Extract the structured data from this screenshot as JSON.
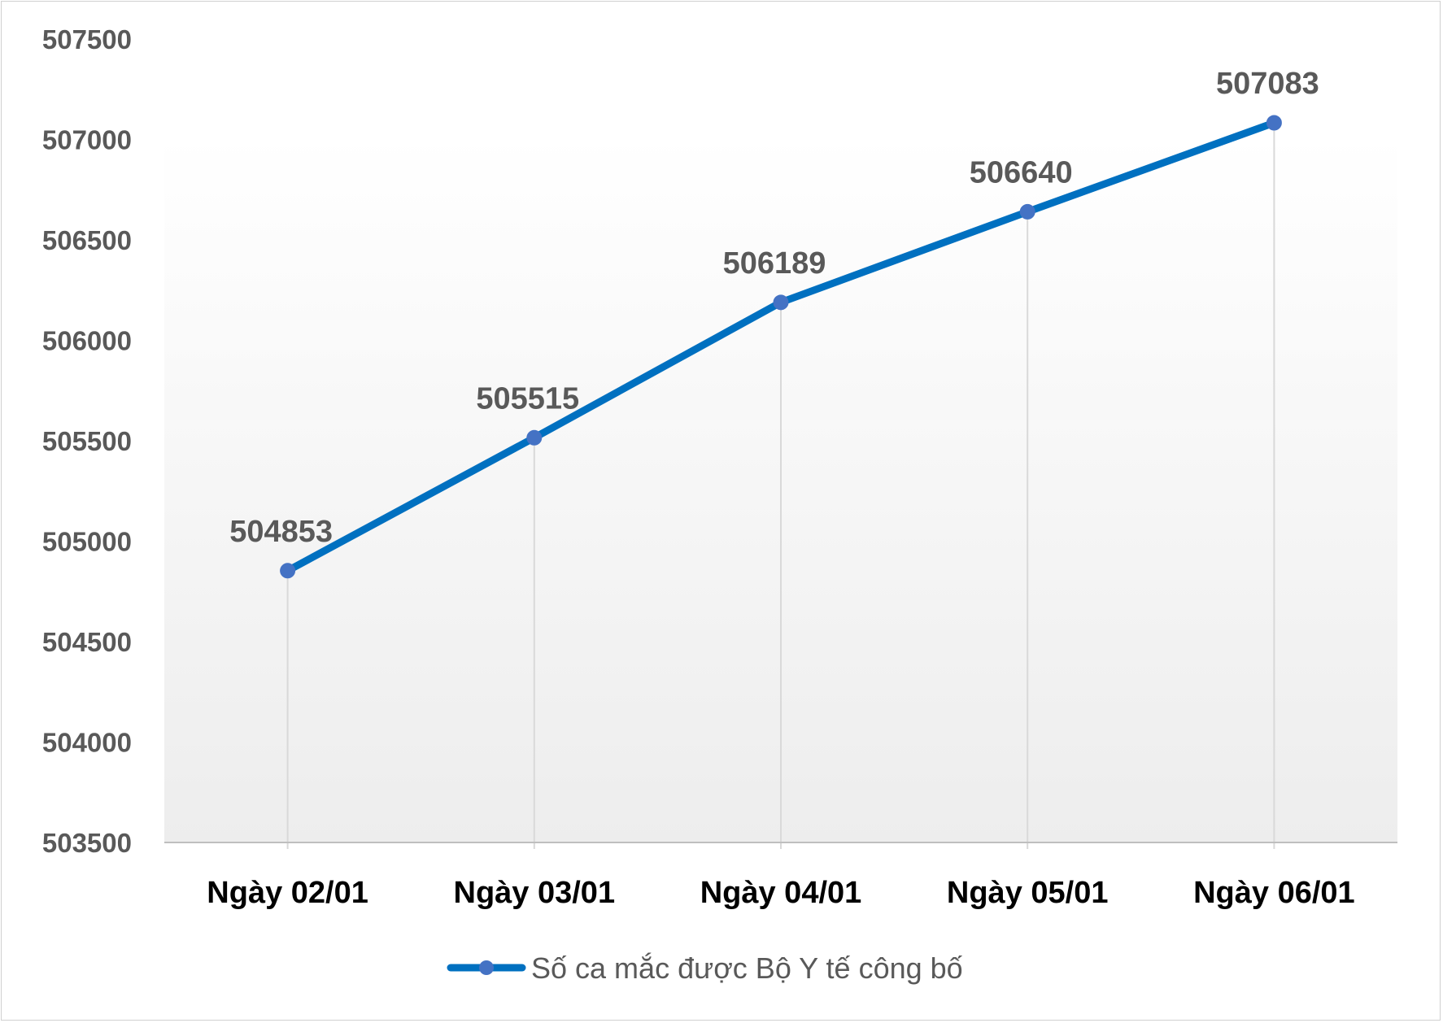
{
  "colors": {
    "series": "#0070C0",
    "marker": "#4472C4",
    "grid": "#d9d9d9",
    "axis": "#bfbfbf",
    "plot_bg_top": "#ffffff",
    "plot_bg_bottom": "#ededed"
  },
  "chart_data": {
    "type": "line",
    "categories": [
      "Ngày 02/01",
      "Ngày 03/01",
      "Ngày 04/01",
      "Ngày 05/01",
      "Ngày 06/01"
    ],
    "series": [
      {
        "name": "Số ca mắc được Bộ Y tế công bố",
        "values": [
          504853,
          505515,
          506189,
          506640,
          507083
        ]
      }
    ],
    "ylim": [
      503500,
      507500
    ],
    "yticks": [
      503500,
      504000,
      504500,
      505000,
      505500,
      506000,
      506500,
      507000,
      507500
    ],
    "data_labels": true,
    "markers": true,
    "vertical_gridlines": true,
    "legend_position": "bottom",
    "title": "",
    "xlabel": "",
    "ylabel": ""
  }
}
